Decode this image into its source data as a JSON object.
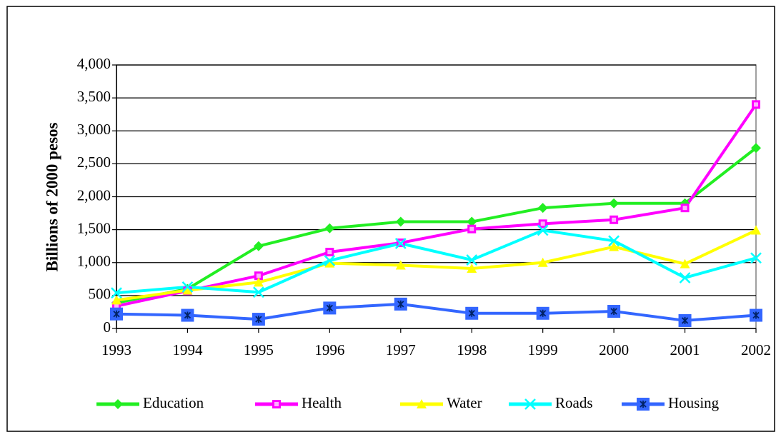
{
  "chart_data": {
    "type": "line",
    "y_label": "Billions of 2000 pesos",
    "categories": [
      "1993",
      "1994",
      "1995",
      "1996",
      "1997",
      "1998",
      "1999",
      "2000",
      "2001",
      "2002"
    ],
    "series": [
      {
        "name": "Education",
        "color": "#22ee22",
        "marker": "diamond",
        "values": [
          390,
          600,
          1250,
          1520,
          1620,
          1620,
          1830,
          1900,
          1900,
          2740
        ]
      },
      {
        "name": "Health",
        "color": "#ff00ff",
        "marker": "square",
        "values": [
          340,
          570,
          800,
          1160,
          1300,
          1510,
          1590,
          1650,
          1830,
          3400
        ]
      },
      {
        "name": "Water",
        "color": "#ffff00",
        "marker": "triangle",
        "values": [
          430,
          580,
          700,
          990,
          960,
          910,
          1000,
          1240,
          980,
          1490
        ]
      },
      {
        "name": "Roads",
        "color": "#00ffff",
        "marker": "x",
        "values": [
          540,
          630,
          550,
          1030,
          1290,
          1040,
          1490,
          1330,
          770,
          1070
        ]
      },
      {
        "name": "Housing",
        "color": "#3366ff",
        "marker": "star-square",
        "values": [
          220,
          200,
          140,
          310,
          370,
          230,
          230,
          260,
          120,
          200
        ]
      }
    ],
    "ylim": [
      0,
      4000
    ],
    "yticks": [
      0,
      500,
      {
        "value": 1000,
        "label": "1,000"
      },
      {
        "value": 1500,
        "label": "1,500"
      },
      {
        "value": 2000,
        "label": "2,000"
      },
      {
        "value": 2500,
        "label": "2,500"
      },
      {
        "value": 3000,
        "label": "3,000"
      },
      {
        "value": 3500,
        "label": "3,500"
      },
      {
        "value": 4000,
        "label": "4,000"
      }
    ],
    "grid": true,
    "legend": "bottom"
  }
}
